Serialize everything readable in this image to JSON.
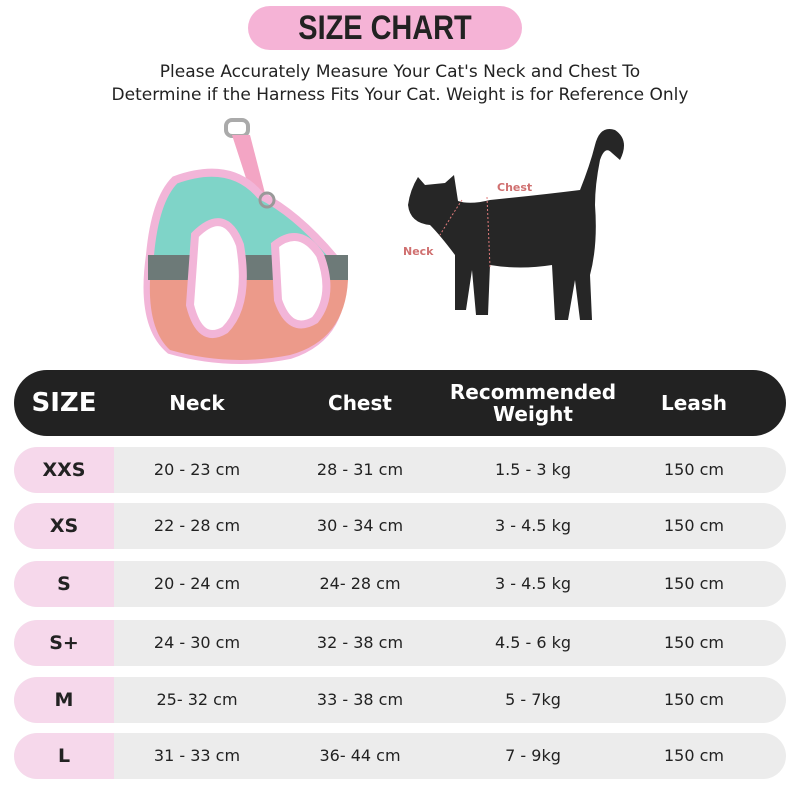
{
  "header": {
    "title": "SIZE CHART",
    "subtitle_lines": [
      "Please Accurately Measure Your Cat's Neck and Chest To",
      "Determine if the Harness Fits Your Cat. Weight is for Reference Only"
    ]
  },
  "diagram": {
    "chest_label": "Chest",
    "neck_label": "Neck"
  },
  "table": {
    "header": [
      "SIZE",
      "Neck",
      "Chest",
      "Recommended Weight",
      "Leash"
    ],
    "rows": [
      [
        "XXS",
        "20 - 23 cm",
        "28 - 31 cm",
        "1.5 - 3 kg",
        "150 cm"
      ],
      [
        "XS",
        "22 - 28 cm",
        "30 - 34 cm",
        "3 - 4.5 kg",
        "150 cm"
      ],
      [
        "S",
        "20 - 24 cm",
        "24- 28 cm",
        "3 - 4.5 kg",
        "150 cm"
      ],
      [
        "S+",
        "24 - 30 cm",
        "32 - 38 cm",
        "4.5 - 6 kg",
        "150 cm"
      ],
      [
        "M",
        "25- 32 cm",
        "33 - 38 cm",
        "5 - 7kg",
        "150 cm"
      ],
      [
        "L",
        "31 - 33 cm",
        "36- 44 cm",
        "7 - 9kg",
        "150 cm"
      ]
    ]
  }
}
